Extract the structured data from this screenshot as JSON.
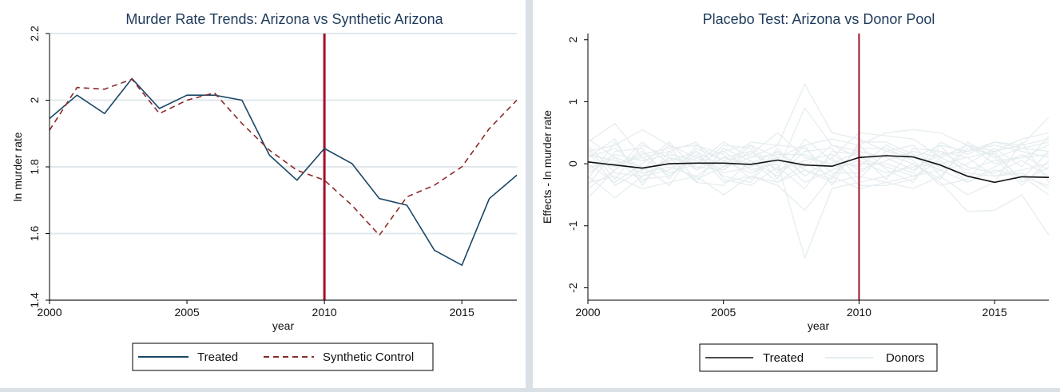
{
  "charts": [
    {
      "chart_data": {
        "type": "line",
        "title": "Murder Rate Trends: Arizona vs Synthetic Arizona",
        "xlabel": "year",
        "ylabel": "ln murder rate",
        "xlim": [
          2000,
          2017
        ],
        "ylim": [
          1.4,
          2.2
        ],
        "xticks": [
          2000,
          2005,
          2010,
          2015
        ],
        "yticks": [
          1.4,
          1.6,
          1.8,
          2.0,
          2.2
        ],
        "xtick_labels": [
          "2000",
          "2005",
          "2010",
          "2015"
        ],
        "ytick_labels": [
          "1.4",
          "1.6",
          "1.8",
          "2",
          "2.2"
        ],
        "grid": true,
        "vline": 2010,
        "legend_position": "bottom",
        "x": [
          2000,
          2001,
          2002,
          2003,
          2004,
          2005,
          2006,
          2007,
          2008,
          2009,
          2010,
          2011,
          2012,
          2013,
          2014,
          2015,
          2016,
          2017
        ],
        "series": [
          {
            "name": "Treated",
            "style": "solid",
            "color": "#1a4766",
            "values": [
              1.945,
              2.015,
              1.96,
              2.065,
              1.975,
              2.015,
              2.015,
              2.0,
              1.835,
              1.76,
              1.855,
              1.81,
              1.705,
              1.685,
              1.55,
              1.505,
              1.705,
              1.775
            ]
          },
          {
            "name": "Synthetic Control",
            "style": "dashed",
            "color": "#8b2b2b",
            "values": [
              1.91,
              2.038,
              2.033,
              2.063,
              1.96,
              2.0,
              2.022,
              1.93,
              1.85,
              1.79,
              1.76,
              1.685,
              1.595,
              1.71,
              1.745,
              1.8,
              1.915,
              2.0
            ]
          }
        ]
      }
    },
    {
      "chart_data": {
        "type": "line",
        "title": "Placebo Test: Arizona vs Donor Pool",
        "xlabel": "year",
        "ylabel": "Effects - ln murder rate",
        "xlim": [
          2000,
          2017
        ],
        "ylim": [
          -2.2,
          2.1
        ],
        "xticks": [
          2000,
          2005,
          2010,
          2015
        ],
        "yticks": [
          -2,
          -1,
          0,
          1,
          2
        ],
        "xtick_labels": [
          "2000",
          "2005",
          "2010",
          "2015"
        ],
        "ytick_labels": [
          "-2",
          "-1",
          "0",
          "1",
          "2"
        ],
        "grid": false,
        "vline": 2010,
        "legend_position": "bottom",
        "x": [
          2000,
          2001,
          2002,
          2003,
          2004,
          2005,
          2006,
          2007,
          2008,
          2009,
          2010,
          2011,
          2012,
          2013,
          2014,
          2015,
          2016,
          2017
        ],
        "series": [
          {
            "name": "Treated",
            "style": "solid",
            "color": "#111111",
            "values": [
              0.03,
              -0.02,
              -0.07,
              0.0,
              0.01,
              0.01,
              -0.01,
              0.06,
              -0.02,
              -0.04,
              0.1,
              0.13,
              0.11,
              -0.02,
              -0.2,
              -0.3,
              -0.21,
              -0.22
            ]
          }
        ],
        "donors": {
          "name": "Donors",
          "color": "#e4ecef",
          "lines": [
            [
              0.1,
              0.25,
              -0.1,
              0.05,
              0.2,
              -0.05,
              0.1,
              0.3,
              1.28,
              0.5,
              0.4,
              0.2,
              0.1,
              0.3,
              0.2,
              0.35,
              0.3,
              0.75
            ],
            [
              -0.15,
              0.1,
              -0.3,
              0.1,
              0.0,
              0.2,
              -0.1,
              0.0,
              -1.52,
              -0.4,
              -0.3,
              -0.2,
              0.0,
              -0.3,
              -0.77,
              -0.75,
              -0.5,
              -1.15
            ],
            [
              -0.55,
              -0.1,
              0.2,
              -0.2,
              0.1,
              -0.1,
              0.2,
              -0.1,
              0.9,
              0.3,
              0.2,
              0.1,
              -0.1,
              0.2,
              0.1,
              0.2,
              0.4,
              0.5
            ],
            [
              0.35,
              0.65,
              0.1,
              0.2,
              -0.1,
              0.1,
              0.0,
              0.2,
              -0.2,
              0.1,
              0.5,
              0.45,
              0.4,
              0.1,
              0.3,
              0.2,
              0.3,
              0.4
            ],
            [
              -0.2,
              -0.55,
              -0.2,
              -0.1,
              0.2,
              -0.3,
              -0.2,
              -0.35,
              -0.75,
              -0.2,
              -0.4,
              -0.3,
              -0.2,
              -0.1,
              -0.3,
              -0.1,
              -0.2,
              -0.5
            ],
            [
              0.2,
              0.3,
              0.55,
              0.3,
              0.1,
              0.2,
              0.3,
              0.1,
              0.3,
              0.4,
              0.3,
              0.5,
              0.55,
              0.5,
              0.3,
              0.1,
              0.25,
              0.2
            ],
            [
              -0.3,
              -0.2,
              -0.4,
              -0.3,
              -0.2,
              -0.5,
              -0.2,
              -0.3,
              -0.1,
              -0.3,
              -0.2,
              -0.3,
              -0.4,
              -0.2,
              -0.5,
              -0.3,
              -0.2,
              -0.35
            ],
            [
              0.05,
              -0.05,
              0.15,
              0.25,
              0.3,
              0.05,
              0.15,
              0.5,
              0.1,
              0.0,
              0.2,
              0.1,
              -0.1,
              0.15,
              0.2,
              0.3,
              0.2,
              0.1
            ],
            [
              0.15,
              0.05,
              -0.15,
              -0.05,
              -0.2,
              0.1,
              0.2,
              -0.1,
              0.05,
              0.15,
              -0.1,
              0.05,
              0.2,
              0.1,
              -0.1,
              0.05,
              0.1,
              0.3
            ],
            [
              -0.1,
              0.15,
              0.05,
              0.15,
              0.05,
              -0.15,
              -0.05,
              0.1,
              -0.3,
              -0.1,
              0.05,
              -0.15,
              -0.05,
              0.0,
              0.1,
              -0.2,
              -0.1,
              0.0
            ],
            [
              0.25,
              -0.25,
              0.3,
              0.1,
              -0.3,
              0.25,
              0.05,
              -0.2,
              0.2,
              0.25,
              -0.25,
              0.2,
              0.3,
              -0.2,
              0.25,
              0.15,
              -0.25,
              0.2
            ],
            [
              -0.25,
              0.35,
              -0.25,
              -0.2,
              0.15,
              -0.2,
              -0.3,
              0.2,
              -0.1,
              -0.25,
              0.3,
              -0.1,
              -0.3,
              0.3,
              -0.2,
              -0.3,
              0.35,
              -0.3
            ],
            [
              0.0,
              -0.3,
              0.0,
              0.35,
              -0.1,
              0.3,
              0.25,
              -0.25,
              0.4,
              0.05,
              -0.05,
              0.3,
              0.1,
              -0.1,
              0.0,
              0.25,
              -0.05,
              0.45
            ],
            [
              0.4,
              0.1,
              -0.05,
              -0.35,
              0.25,
              0.05,
              -0.15,
              0.05,
              -0.05,
              0.3,
              0.1,
              -0.05,
              -0.2,
              0.05,
              -0.3,
              -0.05,
              0.15,
              -0.1
            ],
            [
              -0.4,
              -0.1,
              0.35,
              0.0,
              -0.25,
              -0.05,
              0.35,
              0.3,
              0.25,
              -0.15,
              -0.15,
              0.15,
              0.0,
              -0.25,
              0.35,
              0.1,
              -0.35,
              0.05
            ],
            [
              0.1,
              0.4,
              -0.35,
              0.2,
              0.35,
              -0.25,
              -0.35,
              -0.05,
              -0.4,
              0.2,
              0.15,
              -0.25,
              0.25,
              0.2,
              -0.05,
              -0.15,
              0.05,
              -0.2
            ],
            [
              -0.05,
              0.0,
              0.1,
              -0.15,
              0.0,
              0.35,
              0.1,
              0.15,
              0.15,
              -0.05,
              0.0,
              0.0,
              -0.15,
              0.35,
              0.15,
              0.35,
              0.25,
              0.35
            ],
            [
              0.3,
              -0.15,
              -0.2,
              0.1,
              -0.05,
              -0.1,
              0.3,
              -0.15,
              0.3,
              -0.35,
              0.35,
              0.35,
              0.15,
              -0.05,
              -0.15,
              -0.2,
              -0.15,
              -0.4
            ],
            [
              -0.35,
              0.2,
              0.25,
              -0.25,
              0.3,
              0.15,
              -0.25,
              0.25,
              -0.2,
              0.1,
              -0.35,
              -0.35,
              -0.25,
              0.1,
              0.3,
              0.0,
              0.1,
              0.15
            ],
            [
              0.2,
              -0.35,
              -0.1,
              0.3,
              -0.3,
              -0.35,
              0.05,
              -0.3,
              0.0,
              -0.2,
              0.25,
              0.25,
              0.05,
              -0.35,
              -0.25,
              0.2,
              -0.3,
              -0.05
            ]
          ]
        }
      }
    }
  ]
}
